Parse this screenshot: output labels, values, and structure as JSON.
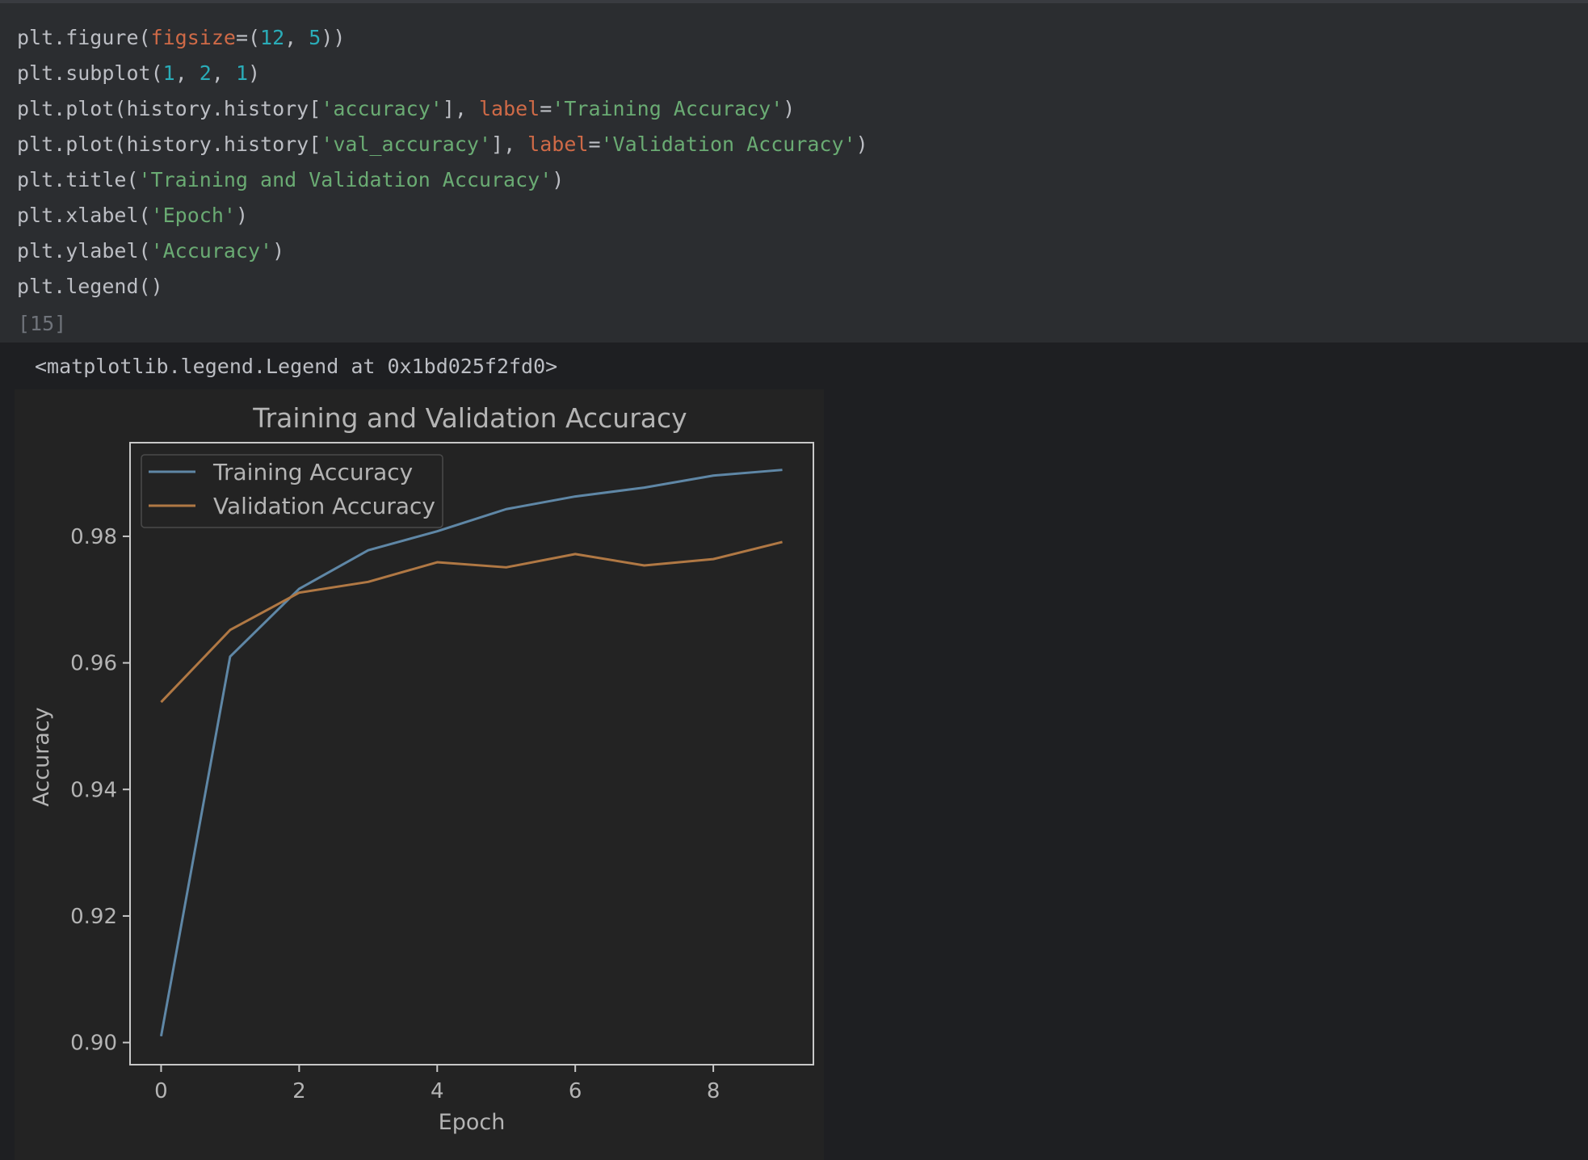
{
  "code_cell": {
    "lines": [
      [
        {
          "t": "plt.figure("
        },
        {
          "t": "figsize",
          "c": "kw"
        },
        {
          "t": "=("
        },
        {
          "t": "12",
          "c": "num"
        },
        {
          "t": ", "
        },
        {
          "t": "5",
          "c": "num"
        },
        {
          "t": "))"
        }
      ],
      [
        {
          "t": "plt.subplot("
        },
        {
          "t": "1",
          "c": "num"
        },
        {
          "t": ", "
        },
        {
          "t": "2",
          "c": "num"
        },
        {
          "t": ", "
        },
        {
          "t": "1",
          "c": "num"
        },
        {
          "t": ")"
        }
      ],
      [
        {
          "t": "plt.plot(history.history["
        },
        {
          "t": "'accuracy'",
          "c": "str"
        },
        {
          "t": "], "
        },
        {
          "t": "label",
          "c": "kw"
        },
        {
          "t": "="
        },
        {
          "t": "'Training Accuracy'",
          "c": "str"
        },
        {
          "t": ")"
        }
      ],
      [
        {
          "t": "plt.plot(history.history["
        },
        {
          "t": "'val_accuracy'",
          "c": "str"
        },
        {
          "t": "], "
        },
        {
          "t": "label",
          "c": "kw"
        },
        {
          "t": "="
        },
        {
          "t": "'Validation Accuracy'",
          "c": "str"
        },
        {
          "t": ")"
        }
      ],
      [
        {
          "t": "plt.title("
        },
        {
          "t": "'Training and Validation Accuracy'",
          "c": "str"
        },
        {
          "t": ")"
        }
      ],
      [
        {
          "t": "plt.xlabel("
        },
        {
          "t": "'Epoch'",
          "c": "str"
        },
        {
          "t": ")"
        }
      ],
      [
        {
          "t": "plt.ylabel("
        },
        {
          "t": "'Accuracy'",
          "c": "str"
        },
        {
          "t": ")"
        }
      ],
      [
        {
          "t": "plt.legend()"
        }
      ]
    ],
    "execution_count": "[15]"
  },
  "output": {
    "text": "<matplotlib.legend.Legend at 0x1bd025f2fd0>"
  },
  "colors": {
    "keyword": "#cf6a47",
    "number": "#2aacb8",
    "string": "#6aab73",
    "plain": "#bcbec4",
    "training_line": "#5f87a6",
    "validation_line": "#b07844"
  },
  "chart_data": {
    "type": "line",
    "title": "Training and Validation Accuracy",
    "xlabel": "Epoch",
    "ylabel": "Accuracy",
    "x": [
      0,
      1,
      2,
      3,
      4,
      5,
      6,
      7,
      8,
      9
    ],
    "series": [
      {
        "name": "Training Accuracy",
        "color": "#5f87a6",
        "values": [
          0.901,
          0.961,
          0.9717,
          0.9778,
          0.9808,
          0.9843,
          0.9863,
          0.9877,
          0.9896,
          0.9905
        ]
      },
      {
        "name": "Validation Accuracy",
        "color": "#b07844",
        "values": [
          0.9538,
          0.9652,
          0.9711,
          0.9728,
          0.9759,
          0.9751,
          0.9772,
          0.9754,
          0.9764,
          0.9791
        ]
      }
    ],
    "xlim": [
      -0.45,
      9.45
    ],
    "ylim": [
      0.8965,
      0.9948
    ],
    "xticks": [
      0,
      2,
      4,
      6,
      8
    ],
    "ytick_labels": [
      "0.90",
      "0.92",
      "0.94",
      "0.96",
      "0.98"
    ],
    "ytick_values": [
      0.9,
      0.92,
      0.94,
      0.96,
      0.98
    ],
    "grid": false,
    "legend": "upper-left"
  }
}
